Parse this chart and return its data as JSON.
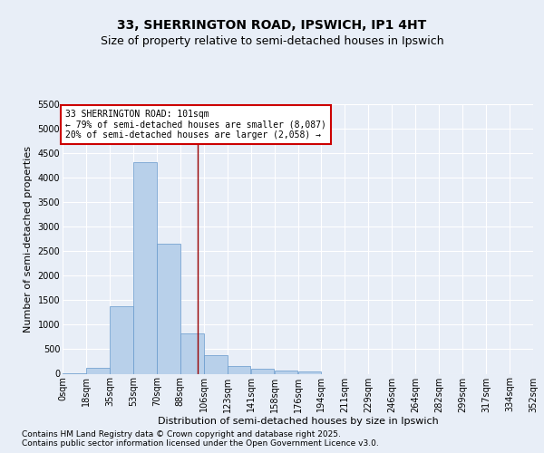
{
  "title_line1": "33, SHERRINGTON ROAD, IPSWICH, IP1 4HT",
  "title_line2": "Size of property relative to semi-detached houses in Ipswich",
  "xlabel": "Distribution of semi-detached houses by size in Ipswich",
  "ylabel": "Number of semi-detached properties",
  "bin_labels": [
    "0sqm",
    "18sqm",
    "35sqm",
    "53sqm",
    "70sqm",
    "88sqm",
    "106sqm",
    "123sqm",
    "141sqm",
    "158sqm",
    "176sqm",
    "194sqm",
    "211sqm",
    "229sqm",
    "246sqm",
    "264sqm",
    "282sqm",
    "299sqm",
    "317sqm",
    "334sqm",
    "352sqm"
  ],
  "bin_edges": [
    0,
    17.6,
    35.2,
    52.8,
    70.4,
    88.0,
    105.6,
    123.2,
    140.8,
    158.4,
    176.0,
    193.6,
    211.2,
    228.8,
    246.4,
    264.0,
    281.6,
    299.2,
    316.8,
    334.4,
    352.0
  ],
  "bar_values": [
    5,
    120,
    1380,
    4320,
    2650,
    830,
    380,
    155,
    105,
    65,
    40,
    0,
    0,
    0,
    0,
    0,
    0,
    0,
    0,
    0
  ],
  "bar_color": "#b8d0ea",
  "bar_edge_color": "#6699cc",
  "property_size": 101,
  "property_line_color": "#990000",
  "annotation_text": "33 SHERRINGTON ROAD: 101sqm\n← 79% of semi-detached houses are smaller (8,087)\n20% of semi-detached houses are larger (2,058) →",
  "annotation_box_color": "#ffffff",
  "annotation_box_edge": "#cc0000",
  "ylim": [
    0,
    5500
  ],
  "yticks": [
    0,
    500,
    1000,
    1500,
    2000,
    2500,
    3000,
    3500,
    4000,
    4500,
    5000,
    5500
  ],
  "background_color": "#e8eef7",
  "plot_bg_color": "#e8eef7",
  "grid_color": "#ffffff",
  "footer_line1": "Contains HM Land Registry data © Crown copyright and database right 2025.",
  "footer_line2": "Contains public sector information licensed under the Open Government Licence v3.0.",
  "title_fontsize": 10,
  "subtitle_fontsize": 9,
  "tick_fontsize": 7,
  "ylabel_fontsize": 8,
  "xlabel_fontsize": 8,
  "annotation_fontsize": 7,
  "footer_fontsize": 6.5
}
